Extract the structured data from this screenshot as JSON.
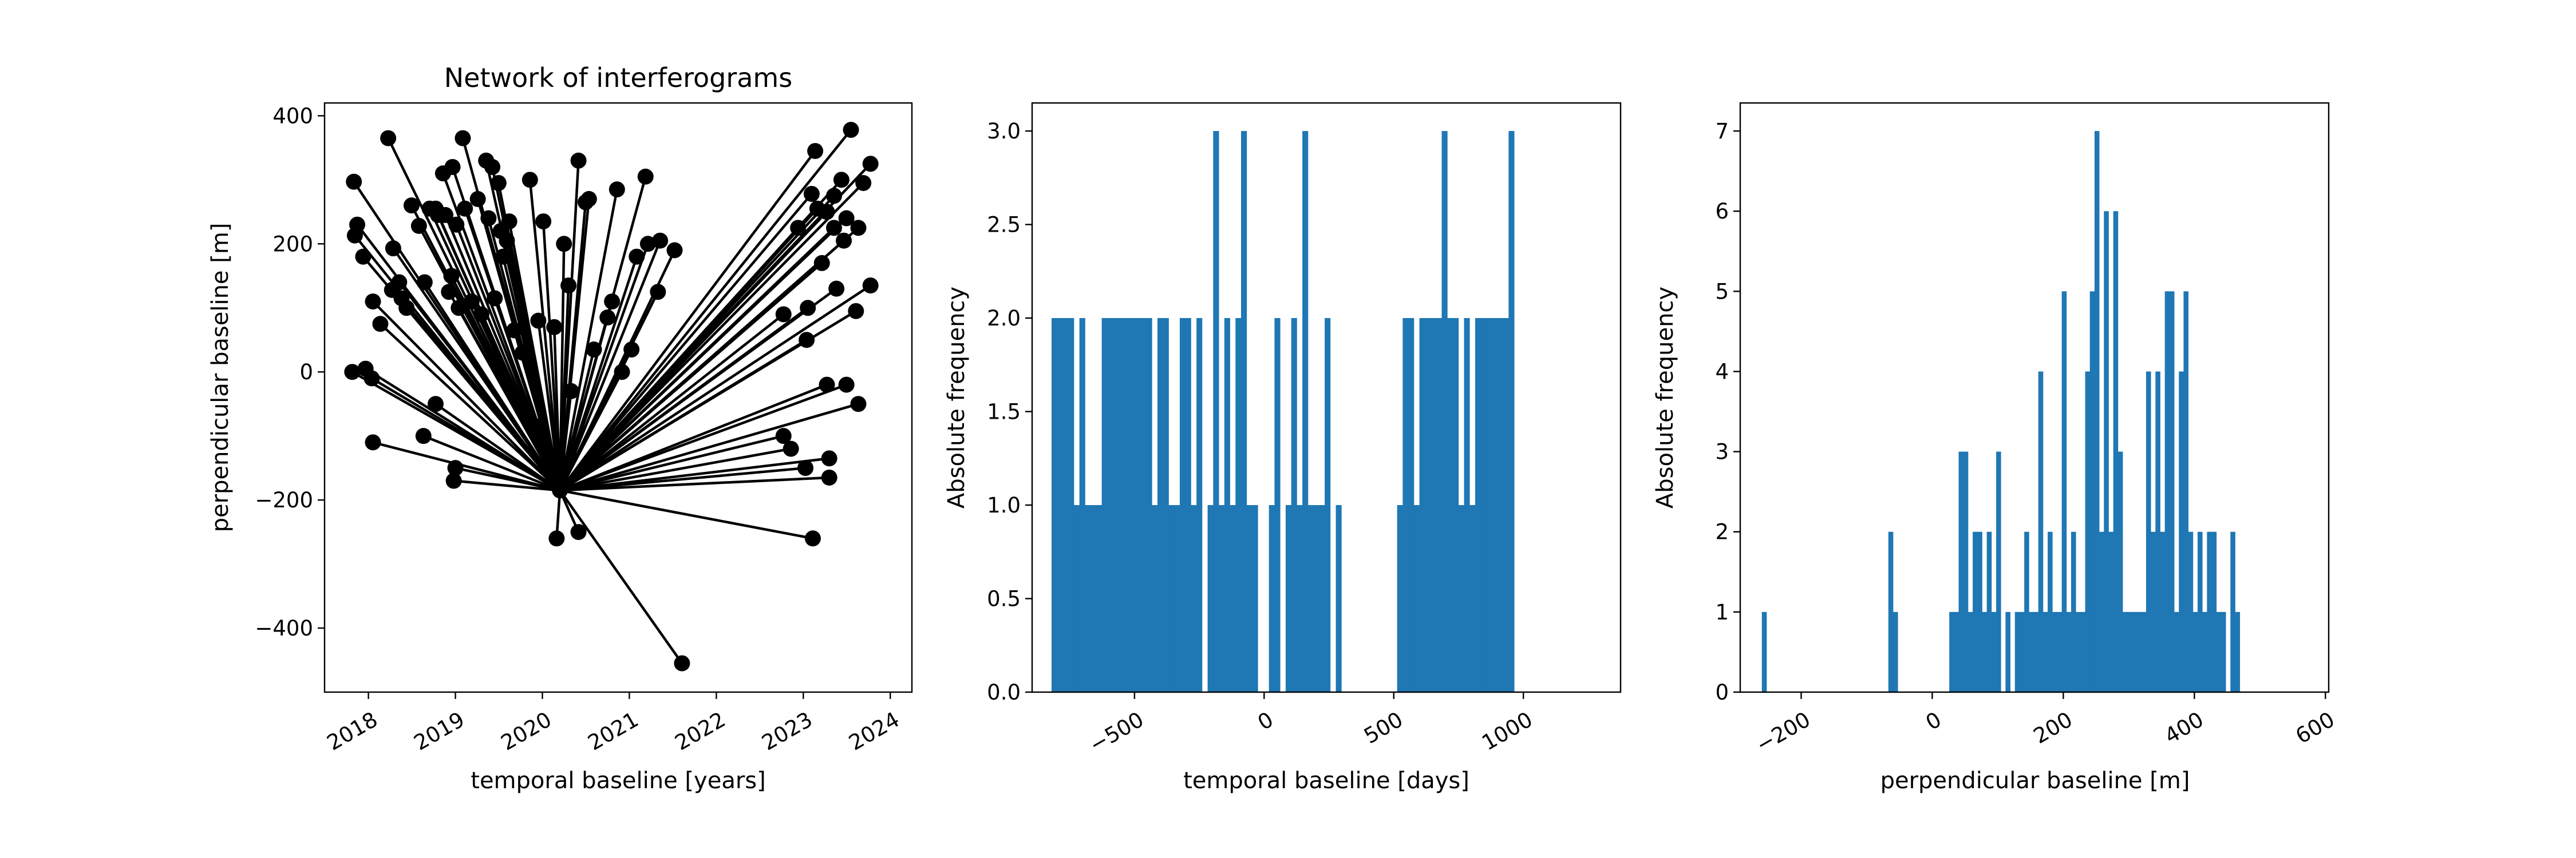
{
  "figure": {
    "background": "#ffffff"
  },
  "chart_data": [
    {
      "type": "scatter",
      "title": "Network of interferograms",
      "xlabel": "temporal baseline [years]",
      "ylabel": "perpendicular baseline [m]",
      "xlim": [
        "2017-07-01",
        "2024-04-01"
      ],
      "ylim": [
        -500,
        420
      ],
      "xticks": [
        "2018",
        "2019",
        "2020",
        "2021",
        "2022",
        "2023",
        "2024"
      ],
      "yticks": [
        400,
        200,
        0,
        -200,
        -400
      ],
      "color": "#000000",
      "reference": {
        "x": "2020-03-15",
        "y": -185
      },
      "points": [
        {
          "x": "2017-11-01",
          "y": 297
        },
        {
          "x": "2017-11-15",
          "y": 230
        },
        {
          "x": "2017-11-05",
          "y": 213
        },
        {
          "x": "2017-12-10",
          "y": 180
        },
        {
          "x": "2018-01-20",
          "y": 110
        },
        {
          "x": "2018-02-20",
          "y": 75
        },
        {
          "x": "2018-03-25",
          "y": 365
        },
        {
          "x": "2018-04-15",
          "y": 193
        },
        {
          "x": "2018-04-10",
          "y": 128
        },
        {
          "x": "2018-05-10",
          "y": 140
        },
        {
          "x": "2018-05-20",
          "y": 115
        },
        {
          "x": "2018-06-10",
          "y": 100
        },
        {
          "x": "2018-07-01",
          "y": 260
        },
        {
          "x": "2018-08-01",
          "y": 228
        },
        {
          "x": "2018-08-25",
          "y": 140
        },
        {
          "x": "2018-09-15",
          "y": 255
        },
        {
          "x": "2018-10-10",
          "y": 255
        },
        {
          "x": "2018-10-20",
          "y": 245
        },
        {
          "x": "2018-11-10",
          "y": 310
        },
        {
          "x": "2018-11-20",
          "y": 245
        },
        {
          "x": "2018-12-05",
          "y": 125
        },
        {
          "x": "2018-12-15",
          "y": 150
        },
        {
          "x": "2018-12-20",
          "y": 320
        },
        {
          "x": "2019-01-05",
          "y": 230
        },
        {
          "x": "2019-01-15",
          "y": 100
        },
        {
          "x": "2019-02-01",
          "y": 365
        },
        {
          "x": "2019-02-10",
          "y": 255
        },
        {
          "x": "2019-03-10",
          "y": 110
        },
        {
          "x": "2019-04-05",
          "y": 270
        },
        {
          "x": "2019-04-20",
          "y": 90
        },
        {
          "x": "2019-05-10",
          "y": 330
        },
        {
          "x": "2019-05-20",
          "y": 240
        },
        {
          "x": "2019-06-05",
          "y": 320
        },
        {
          "x": "2019-06-15",
          "y": 115
        },
        {
          "x": "2019-07-01",
          "y": 295
        },
        {
          "x": "2019-07-10",
          "y": 220
        },
        {
          "x": "2019-07-20",
          "y": 180
        },
        {
          "x": "2019-08-05",
          "y": 205
        },
        {
          "x": "2019-08-15",
          "y": 235
        },
        {
          "x": "2019-09-05",
          "y": 65
        },
        {
          "x": "2019-10-10",
          "y": 30
        },
        {
          "x": "2019-11-10",
          "y": 300
        },
        {
          "x": "2019-12-15",
          "y": 80
        },
        {
          "x": "2019-12-20",
          "y": -85
        },
        {
          "x": "2020-01-05",
          "y": 235
        },
        {
          "x": "2020-02-20",
          "y": 70
        },
        {
          "x": "2020-04-01",
          "y": 200
        },
        {
          "x": "2020-04-20",
          "y": 135
        },
        {
          "x": "2020-05-01",
          "y": -30
        },
        {
          "x": "2020-06-01",
          "y": 330
        },
        {
          "x": "2020-07-01",
          "y": 265
        },
        {
          "x": "2020-07-15",
          "y": 270
        },
        {
          "x": "2020-08-05",
          "y": 35
        },
        {
          "x": "2020-10-01",
          "y": 85
        },
        {
          "x": "2020-10-20",
          "y": 110
        },
        {
          "x": "2020-11-10",
          "y": 285
        },
        {
          "x": "2020-12-01",
          "y": 0
        },
        {
          "x": "2021-01-10",
          "y": 35
        },
        {
          "x": "2021-02-01",
          "y": 180
        },
        {
          "x": "2021-03-10",
          "y": 305
        },
        {
          "x": "2021-03-20",
          "y": 200
        },
        {
          "x": "2021-05-10",
          "y": 205
        },
        {
          "x": "2021-07-10",
          "y": 190
        },
        {
          "x": "2021-05-01",
          "y": 125
        },
        {
          "x": "2020-03-01",
          "y": -260
        },
        {
          "x": "2020-06-01",
          "y": -250
        },
        {
          "x": "2021-08-10",
          "y": -455
        },
        {
          "x": "2017-10-25",
          "y": 0
        },
        {
          "x": "2017-12-20",
          "y": 5
        },
        {
          "x": "2018-01-15",
          "y": -10
        },
        {
          "x": "2018-01-20",
          "y": -110
        },
        {
          "x": "2018-08-20",
          "y": -100
        },
        {
          "x": "2018-10-10",
          "y": -50
        },
        {
          "x": "2019-01-01",
          "y": -150
        },
        {
          "x": "2018-12-25",
          "y": -170
        },
        {
          "x": "2022-10-10",
          "y": 90
        },
        {
          "x": "2023-01-20",
          "y": 100
        },
        {
          "x": "2023-03-20",
          "y": 170
        },
        {
          "x": "2023-07-01",
          "y": 240
        },
        {
          "x": "2023-08-10",
          "y": 95
        },
        {
          "x": "2023-10-10",
          "y": 135
        },
        {
          "x": "2023-05-20",
          "y": 130
        },
        {
          "x": "2023-04-10",
          "y": -20
        },
        {
          "x": "2023-07-01",
          "y": -20
        },
        {
          "x": "2023-08-20",
          "y": -50
        },
        {
          "x": "2022-10-10",
          "y": -100
        },
        {
          "x": "2022-11-10",
          "y": -120
        },
        {
          "x": "2023-01-10",
          "y": -150
        },
        {
          "x": "2023-04-20",
          "y": -165
        },
        {
          "x": "2023-04-20",
          "y": -135
        },
        {
          "x": "2023-02-10",
          "y": -260
        },
        {
          "x": "2023-01-15",
          "y": 50
        },
        {
          "x": "2022-12-10",
          "y": 225
        },
        {
          "x": "2023-02-05",
          "y": 278
        },
        {
          "x": "2023-02-20",
          "y": 345
        },
        {
          "x": "2023-03-01",
          "y": 255
        },
        {
          "x": "2023-04-10",
          "y": 250
        },
        {
          "x": "2023-05-10",
          "y": 275
        },
        {
          "x": "2023-06-10",
          "y": 300
        },
        {
          "x": "2023-06-20",
          "y": 205
        },
        {
          "x": "2023-07-20",
          "y": 378
        },
        {
          "x": "2023-08-20",
          "y": 225
        },
        {
          "x": "2023-09-10",
          "y": 295
        },
        {
          "x": "2023-10-10",
          "y": 325
        },
        {
          "x": "2023-05-10",
          "y": 225
        }
      ]
    },
    {
      "type": "bar",
      "title": "",
      "xlabel": "temporal baseline [days]",
      "ylabel": "Absolute frequency",
      "xlim": [
        -895,
        1375
      ],
      "ylim": [
        0,
        3.15
      ],
      "xticks": [
        -500,
        0,
        500,
        1000
      ],
      "xtick_labels": [
        "−500",
        "0",
        "500",
        "1000"
      ],
      "yticks": [
        0.0,
        0.5,
        1.0,
        1.5,
        2.0,
        2.5,
        3.0
      ],
      "ytick_labels": [
        "0.0",
        "0.5",
        "1.0",
        "1.5",
        "2.0",
        "2.5",
        "3.0"
      ],
      "color": "#1f77b4",
      "bin_start": -820,
      "bin_width": 21.5,
      "values": [
        2,
        2,
        2,
        2,
        1,
        2,
        1,
        1,
        1,
        2,
        2,
        2,
        2,
        2,
        2,
        2,
        2,
        2,
        1,
        2,
        2,
        1,
        1,
        2,
        2,
        1,
        2,
        0,
        1,
        3,
        1,
        2,
        1,
        2,
        3,
        1,
        1,
        0,
        0,
        1,
        2,
        0,
        1,
        2,
        1,
        3,
        1,
        1,
        1,
        2,
        0,
        1,
        0,
        0,
        0,
        0,
        0,
        0,
        0,
        0,
        0,
        0,
        1,
        2,
        2,
        1,
        2,
        2,
        2,
        2,
        3,
        2,
        2,
        1,
        2,
        1,
        2,
        2,
        2,
        2,
        2,
        2,
        3
      ]
    },
    {
      "type": "bar",
      "title": "",
      "xlabel": "perpendicular baseline [m]",
      "ylabel": "Absolute frequency",
      "xlim": [
        -293,
        605
      ],
      "ylim": [
        0,
        7.35
      ],
      "xticks": [
        -200,
        0,
        200,
        400,
        600
      ],
      "xtick_labels": [
        "−200",
        "0",
        "200",
        "400",
        "600"
      ],
      "yticks": [
        0,
        1,
        2,
        3,
        4,
        5,
        6,
        7
      ],
      "ytick_labels": [
        "0",
        "1",
        "2",
        "3",
        "4",
        "5",
        "6",
        "7"
      ],
      "color": "#1f77b4",
      "bin_start": -260,
      "bin_width": 7.15,
      "values": [
        1,
        0,
        0,
        0,
        0,
        0,
        0,
        0,
        0,
        0,
        0,
        0,
        0,
        0,
        0,
        0,
        0,
        0,
        0,
        0,
        0,
        0,
        0,
        0,
        0,
        0,
        0,
        2,
        1,
        0,
        0,
        0,
        0,
        0,
        0,
        0,
        0,
        0,
        0,
        0,
        1,
        1,
        3,
        3,
        1,
        2,
        2,
        1,
        2,
        1,
        3,
        0,
        1,
        0,
        1,
        1,
        2,
        1,
        1,
        4,
        1,
        2,
        1,
        1,
        5,
        1,
        2,
        1,
        1,
        4,
        5,
        7,
        2,
        6,
        2,
        6,
        3,
        1,
        1,
        1,
        1,
        1,
        4,
        2,
        4,
        2,
        5,
        5,
        1,
        4,
        5,
        2,
        1,
        2,
        1,
        2,
        2,
        1,
        1,
        0,
        2,
        1
      ]
    }
  ]
}
